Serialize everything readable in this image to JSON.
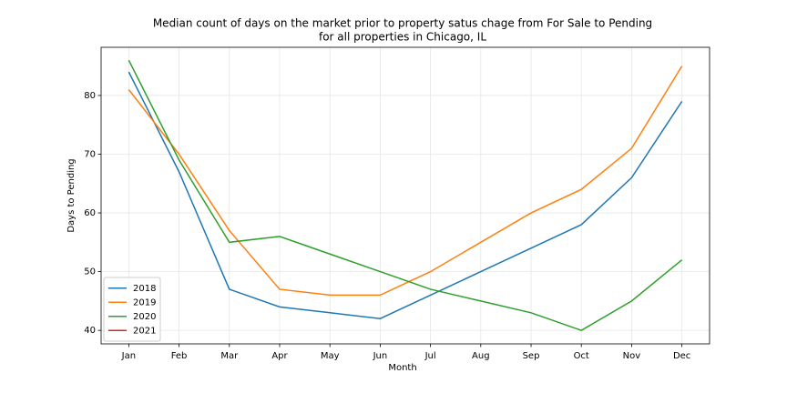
{
  "chart_data": {
    "type": "line",
    "title": [
      "Median count of days on the market prior to property satus chage from For Sale to Pending",
      "for all properties in Chicago, IL"
    ],
    "x_label": "Month",
    "y_label": "Days to Pending",
    "categories": [
      "Jan",
      "Feb",
      "Mar",
      "Apr",
      "May",
      "Jun",
      "Jul",
      "Aug",
      "Sep",
      "Oct",
      "Nov",
      "Dec"
    ],
    "series": [
      {
        "name": "2018",
        "color": "#1f77b4",
        "values": [
          84,
          67,
          47,
          44,
          43,
          42,
          46,
          50,
          54,
          58,
          66,
          79
        ]
      },
      {
        "name": "2019",
        "color": "#ff7f0e",
        "values": [
          81,
          70,
          57,
          47,
          46,
          46,
          50,
          55,
          60,
          64,
          71,
          85
        ]
      },
      {
        "name": "2020",
        "color": "#2ca02c",
        "values": [
          86,
          69,
          55,
          56,
          53,
          50,
          47,
          45,
          43,
          40,
          45,
          52
        ]
      },
      {
        "name": "2021",
        "color": "#d62728",
        "values": [
          null,
          null,
          null,
          null,
          null,
          null,
          null,
          null,
          null,
          null,
          null,
          null
        ]
      }
    ],
    "ylim": [
      37.7,
      88.2
    ],
    "yticks": [
      40,
      50,
      60,
      70,
      80
    ],
    "grid": true,
    "legend": "lower left"
  }
}
